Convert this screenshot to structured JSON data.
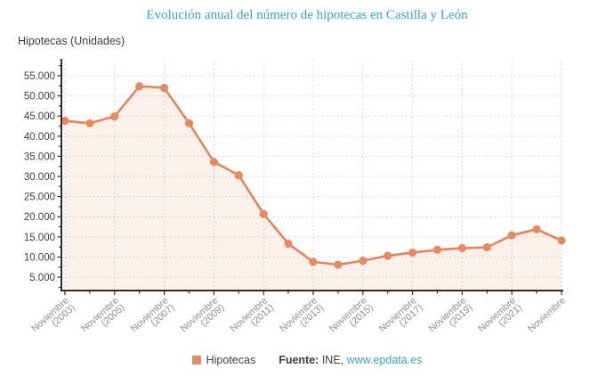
{
  "header": {
    "title": "Evolución anual del número de hipotecas en Castilla y León",
    "y_axis_unit": "Hipotecas (Unidades)"
  },
  "colors": {
    "accent_teal": "#35a9b5",
    "series_orange": "#e6855c",
    "point_orange": "#e78a60",
    "area_fill": "rgba(230,133,92,0.12)",
    "grid": "#c9c9c9",
    "axis": "#2d2d2d",
    "y_label": "#3e3e3e",
    "x_label": "#8e8e8e",
    "text_dark": "#3e3e3e"
  },
  "chart_data": {
    "type": "line",
    "title": "Evolución anual del número de hipotecas en Castilla y León",
    "ylabel": "Hipotecas (Unidades)",
    "xlabel": "",
    "grid": "dotted",
    "legend_position": "bottom",
    "ylim": [
      1680,
      58760
    ],
    "x": [
      2003,
      2004,
      2005,
      2006,
      2007,
      2008,
      2009,
      2010,
      2011,
      2012,
      2013,
      2014,
      2015,
      2016,
      2017,
      2018,
      2019,
      2020,
      2021,
      2022,
      2023
    ],
    "series": [
      {
        "name": "Hipotecas",
        "values": [
          43800,
          43200,
          44900,
          52400,
          52000,
          43200,
          33600,
          30300,
          20700,
          13300,
          8800,
          8100,
          9100,
          10300,
          11100,
          11800,
          12200,
          12400,
          15400,
          16900,
          14100
        ]
      }
    ],
    "y_ticks": [
      {
        "value": 5000,
        "label": "5.000"
      },
      {
        "value": 10000,
        "label": "10.000"
      },
      {
        "value": 15000,
        "label": "15.000"
      },
      {
        "value": 20000,
        "label": "20.000"
      },
      {
        "value": 25000,
        "label": "25.000"
      },
      {
        "value": 30000,
        "label": "30.000"
      },
      {
        "value": 35000,
        "label": "35.000"
      },
      {
        "value": 40000,
        "label": "40.000"
      },
      {
        "value": 45000,
        "label": "45.000"
      },
      {
        "value": 50000,
        "label": "50.000"
      },
      {
        "value": 55000,
        "label": "55.000"
      }
    ],
    "x_ticks": [
      {
        "i": 0,
        "line1": "Noviembre",
        "line2": "(2003)"
      },
      {
        "i": 2,
        "line1": "Noviembre",
        "line2": "(2005)"
      },
      {
        "i": 4,
        "line1": "Noviembre",
        "line2": "(2007)"
      },
      {
        "i": 6,
        "line1": "Noviembre",
        "line2": "(2009)"
      },
      {
        "i": 8,
        "line1": "Noviembre",
        "line2": "(2011)"
      },
      {
        "i": 10,
        "line1": "Noviembre",
        "line2": "(2013)"
      },
      {
        "i": 12,
        "line1": "Noviembre",
        "line2": "(2015)"
      },
      {
        "i": 14,
        "line1": "Noviembre",
        "line2": "(2017)"
      },
      {
        "i": 16,
        "line1": "Noviembre",
        "line2": "(2019)"
      },
      {
        "i": 18,
        "line1": "Noviembre",
        "line2": "(2021)"
      },
      {
        "i": 20,
        "line1": "Noviembre",
        "line2": ""
      }
    ]
  },
  "footer": {
    "legend_label": "Hipotecas",
    "source_label": "Fuente:",
    "source_text": " INE, ",
    "link_text": "www.epdata.es"
  }
}
